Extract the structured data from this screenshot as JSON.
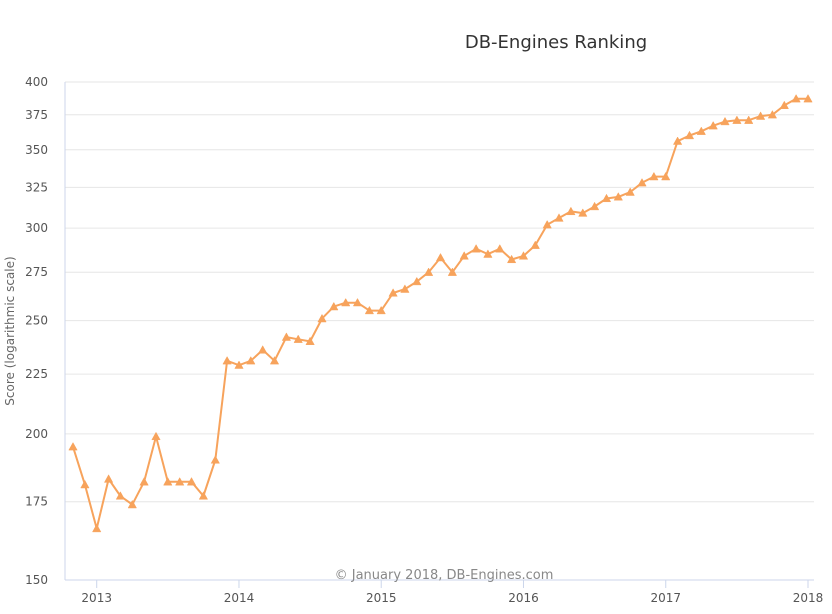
{
  "chart_data": {
    "type": "line",
    "title": "DB-Engines Ranking",
    "xlabel": "",
    "ylabel": "Score (logarithmic scale)",
    "credit": "© January 2018, DB-Engines.com",
    "y_scale": "log",
    "ylim": [
      150,
      400
    ],
    "y_ticks": [
      150,
      175,
      200,
      225,
      250,
      275,
      300,
      325,
      350,
      375,
      400
    ],
    "x_ticks": [
      "2013",
      "2014",
      "2015",
      "2016",
      "2017",
      "2018"
    ],
    "xlim": [
      "2012-11",
      "2018-01"
    ],
    "grid": true,
    "legend": "none",
    "series_color": "#f7a35c",
    "marker": "triangle",
    "x": [
      "2012-11",
      "2012-12",
      "2013-01",
      "2013-02",
      "2013-03",
      "2013-04",
      "2013-05",
      "2013-06",
      "2013-07",
      "2013-08",
      "2013-09",
      "2013-10",
      "2013-11",
      "2013-12",
      "2014-01",
      "2014-02",
      "2014-03",
      "2014-04",
      "2014-05",
      "2014-06",
      "2014-07",
      "2014-08",
      "2014-09",
      "2014-10",
      "2014-11",
      "2014-12",
      "2015-01",
      "2015-02",
      "2015-03",
      "2015-04",
      "2015-05",
      "2015-06",
      "2015-07",
      "2015-08",
      "2015-09",
      "2015-10",
      "2015-11",
      "2015-12",
      "2016-01",
      "2016-02",
      "2016-03",
      "2016-04",
      "2016-05",
      "2016-06",
      "2016-07",
      "2016-08",
      "2016-09",
      "2016-10",
      "2016-11",
      "2016-12",
      "2017-01",
      "2017-02",
      "2017-03",
      "2017-04",
      "2017-05",
      "2017-06",
      "2017-07",
      "2017-08",
      "2017-09",
      "2017-10",
      "2017-11",
      "2017-12",
      "2018-01"
    ],
    "series": [
      {
        "values": [
          195,
          181,
          166,
          183,
          177,
          174,
          182,
          199,
          182,
          182,
          182,
          177,
          190,
          231,
          229,
          231,
          236,
          231,
          242,
          241,
          240,
          251,
          257,
          259,
          259,
          255,
          255,
          264,
          266,
          270,
          275,
          283,
          275,
          284,
          288,
          285,
          288,
          282,
          284,
          290,
          302,
          306,
          310,
          309,
          313,
          318,
          319,
          322,
          328,
          332,
          332,
          356,
          360,
          363,
          367,
          370,
          371,
          371,
          374,
          375,
          382,
          387,
          387
        ]
      }
    ]
  }
}
